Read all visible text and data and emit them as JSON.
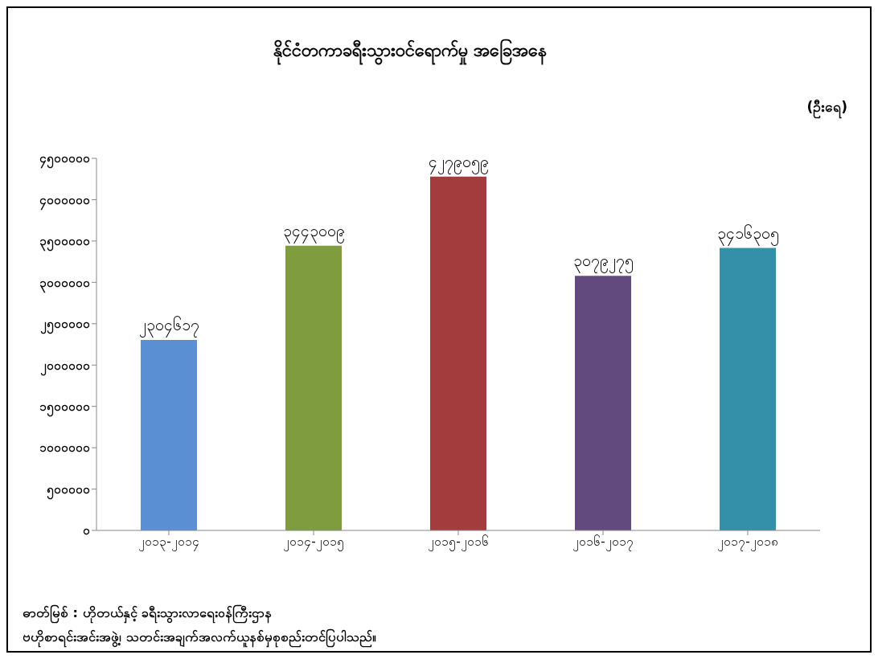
{
  "chart_data": {
    "type": "bar",
    "title": "နိုင်ငံတကာခရီးသွားဝင်ရောက်မှု အခြေအနေ",
    "ylabel": "(ဦးရေ)",
    "categories": [
      "၂၀၁၃-၂၀၁၄",
      "၂၀၁၄-၂၀၁၅",
      "၂၀၁၅-၂၀၁၆",
      "၂၀၁၆-၂၀၁၇",
      "၂၀၁၇-၂၀၁၈"
    ],
    "values": [
      2304617,
      3443009,
      4279059,
      3079275,
      3416305
    ],
    "value_labels": [
      "၂၃၀၄၆၁၇",
      "၃၄၄၃၀၀၉",
      "၄၂၇၉၀၅၉",
      "၃၀၇၉၂၇၅",
      "၃၄၁၆၃၀၅"
    ],
    "colors": [
      "#5b8fd4",
      "#7f9c3f",
      "#a33c3c",
      "#624a7e",
      "#3490a8"
    ],
    "ylim": [
      0,
      4500000
    ],
    "yticks": [
      {
        "value": 0,
        "label": "၀"
      },
      {
        "value": 500000,
        "label": "၅၀၀၀၀၀"
      },
      {
        "value": 1000000,
        "label": "၁၀၀၀၀၀၀"
      },
      {
        "value": 1500000,
        "label": "၁၅၀၀၀၀၀"
      },
      {
        "value": 2000000,
        "label": "၂၀၀၀၀၀၀"
      },
      {
        "value": 2500000,
        "label": "၂၅၀၀၀၀၀"
      },
      {
        "value": 3000000,
        "label": "၃၀၀၀၀၀၀"
      },
      {
        "value": 3500000,
        "label": "၃၅၀၀၀၀၀"
      },
      {
        "value": 4000000,
        "label": "၄၀၀၀၀၀၀"
      },
      {
        "value": 4500000,
        "label": "၄၅၀၀၀၀၀"
      }
    ],
    "grid": false,
    "legend": false,
    "annotations": [
      "ဓာတ်မြစ် : ဟိုတယ်နှင့် ခရီးသွားလာရေးဝန်ကြီးဌာန",
      "ဗဟိုစာရင်းအင်းအဖွဲ့၊ သတင်းအချက်အလက်ယူနစ်မှစုစည်းတင်ပြပါသည်။"
    ]
  }
}
